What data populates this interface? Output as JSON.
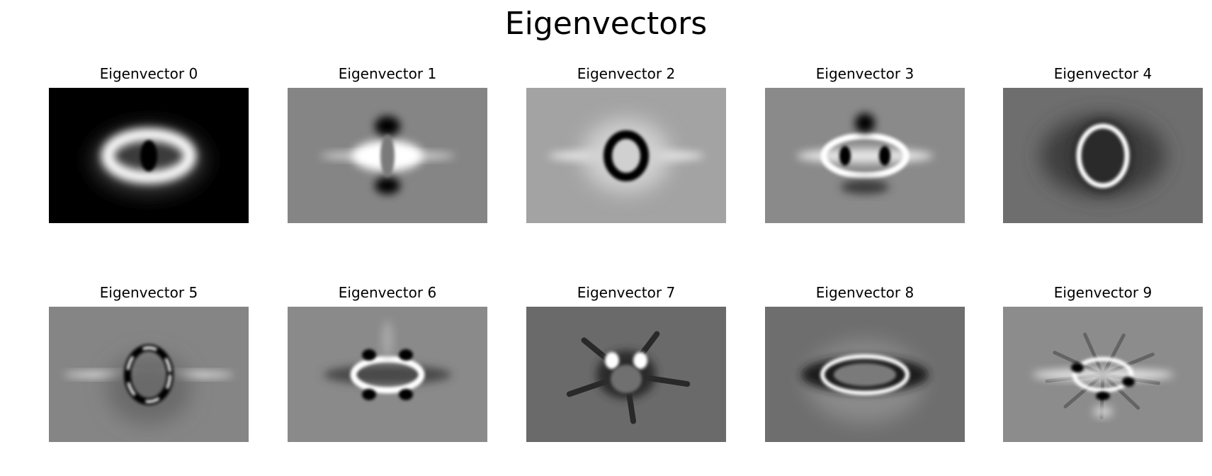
{
  "figure": {
    "title": "Eigenvectors"
  },
  "panels": [
    {
      "title": "Eigenvector 0",
      "background": "#000000",
      "variant": 0
    },
    {
      "title": "Eigenvector 1",
      "background": "#858585",
      "variant": 1
    },
    {
      "title": "Eigenvector 2",
      "background": "#a3a3a3",
      "variant": 2
    },
    {
      "title": "Eigenvector 3",
      "background": "#8a8a8a",
      "variant": 3
    },
    {
      "title": "Eigenvector 4",
      "background": "#6e6e6e",
      "variant": 4
    },
    {
      "title": "Eigenvector 5",
      "background": "#858585",
      "variant": 5
    },
    {
      "title": "Eigenvector 6",
      "background": "#8a8a8a",
      "variant": 6
    },
    {
      "title": "Eigenvector 7",
      "background": "#6a6a6a",
      "variant": 7
    },
    {
      "title": "Eigenvector 8",
      "background": "#6e6e6e",
      "variant": 8
    },
    {
      "title": "Eigenvector 9",
      "background": "#8c8c8c",
      "variant": 9
    }
  ]
}
